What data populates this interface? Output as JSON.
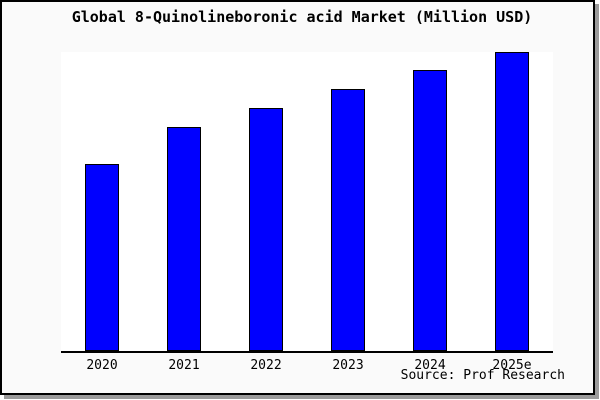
{
  "window": {
    "background_color": "#fafafa",
    "frame_border_color": "#000000",
    "shadow_color": "#9b9b9b"
  },
  "chart_data": {
    "type": "bar",
    "title": "Global 8-Quinolineboronic acid Market (Million USD)",
    "categories": [
      "2020",
      "2021",
      "2022",
      "2023",
      "2024",
      "2025e"
    ],
    "values": [
      187,
      224,
      243,
      262,
      281,
      299
    ],
    "value_scale_note": "y-axis has no ticks, labels or gridlines; values are relative units proportional to measured bar heights",
    "ylim": [
      0,
      299
    ],
    "xlabel": "",
    "ylabel": "",
    "grid": false,
    "legend": null,
    "bar_color": "#0000ff",
    "bar_border_color": "#000000",
    "plot_background": "#ffffff"
  },
  "footer": {
    "source_label": "Source: Prof Research"
  }
}
